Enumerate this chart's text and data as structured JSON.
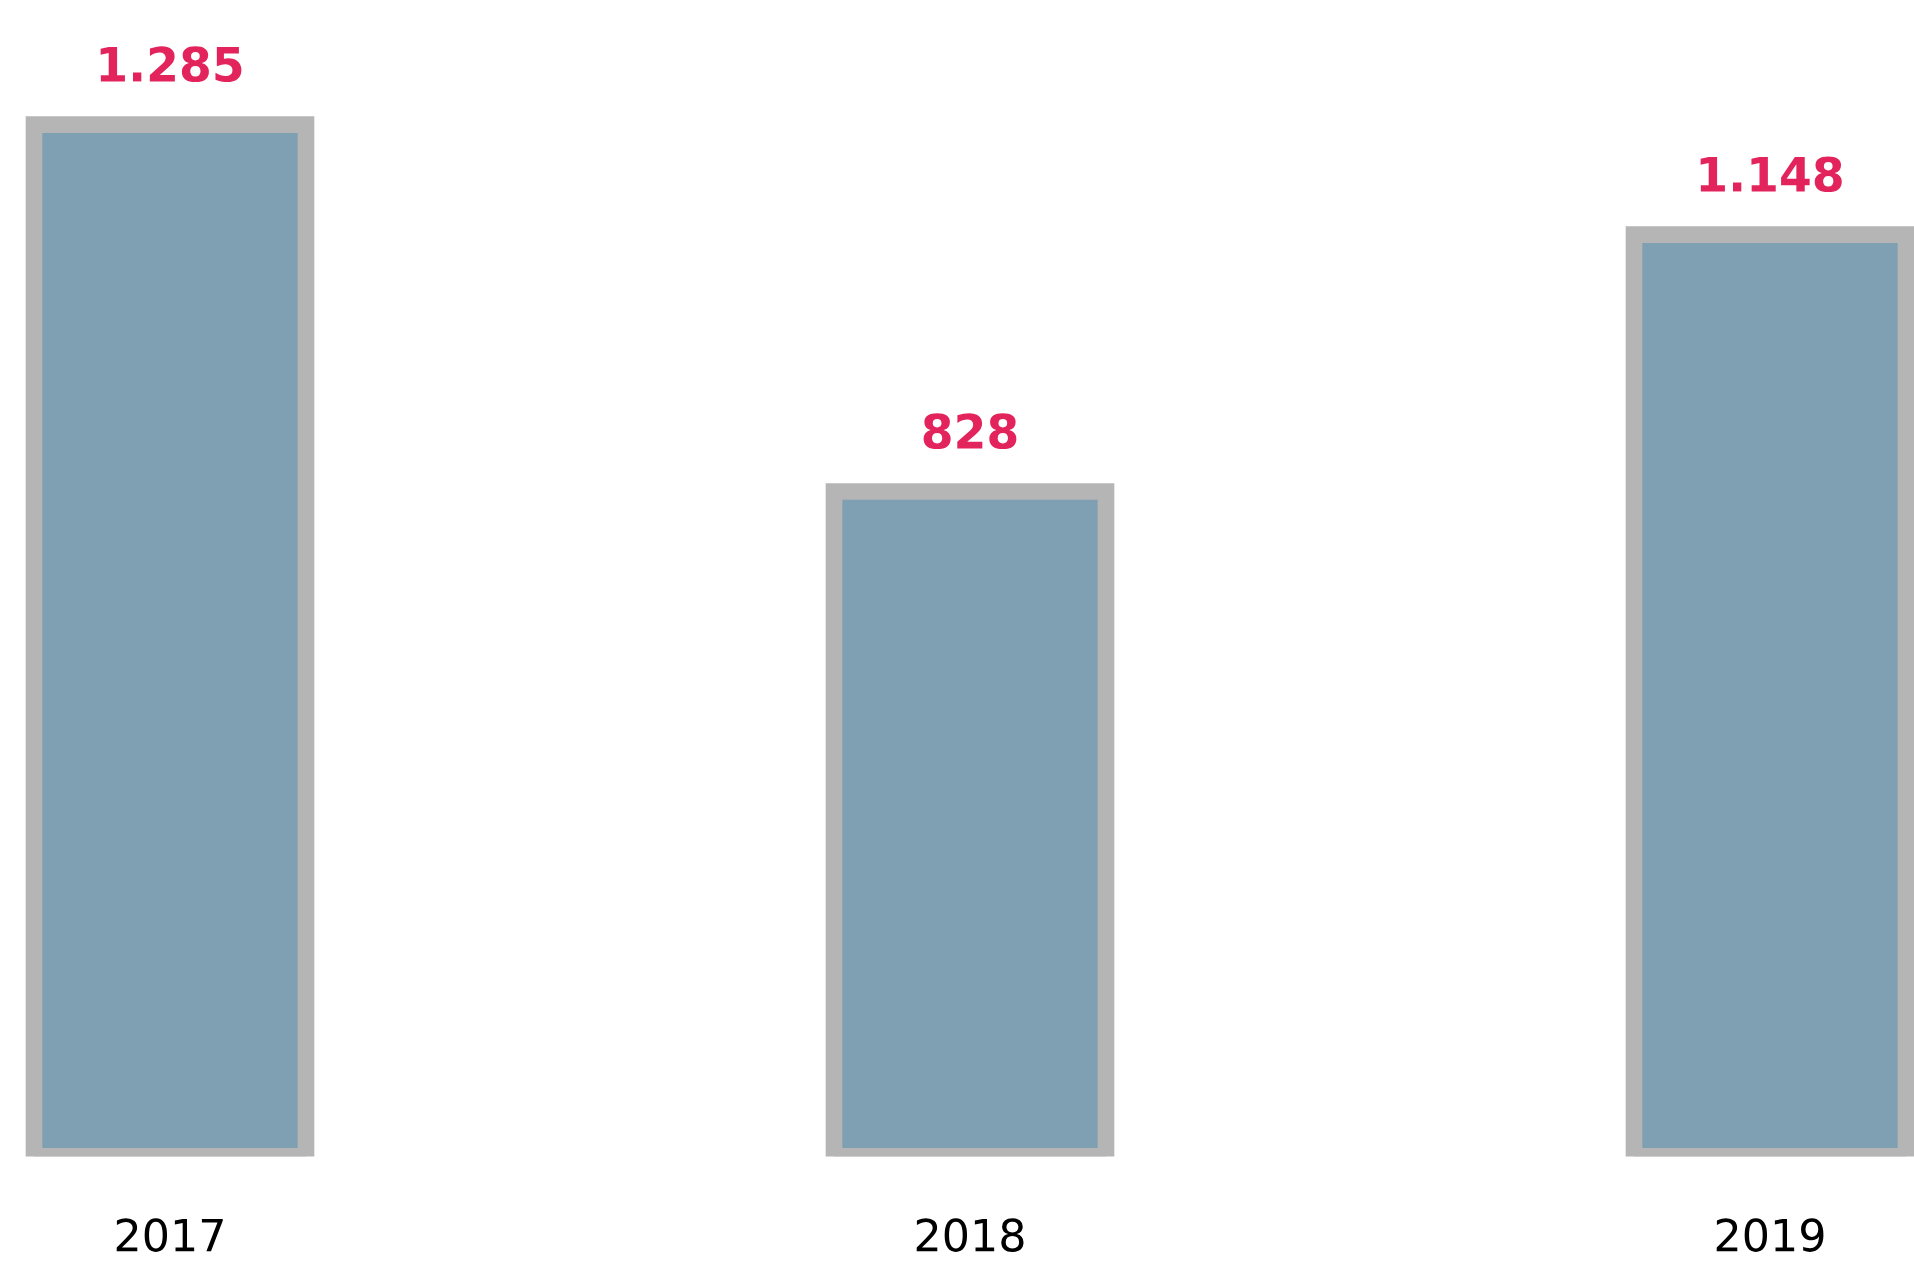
{
  "chart_data": {
    "type": "bar",
    "categories": [
      "2017",
      "2018",
      "2019"
    ],
    "values": [
      1285,
      828,
      1148
    ],
    "value_labels": [
      "1.285",
      "828",
      "1.148"
    ],
    "color": "#7f9fb2",
    "grid": false,
    "legend": false
  }
}
